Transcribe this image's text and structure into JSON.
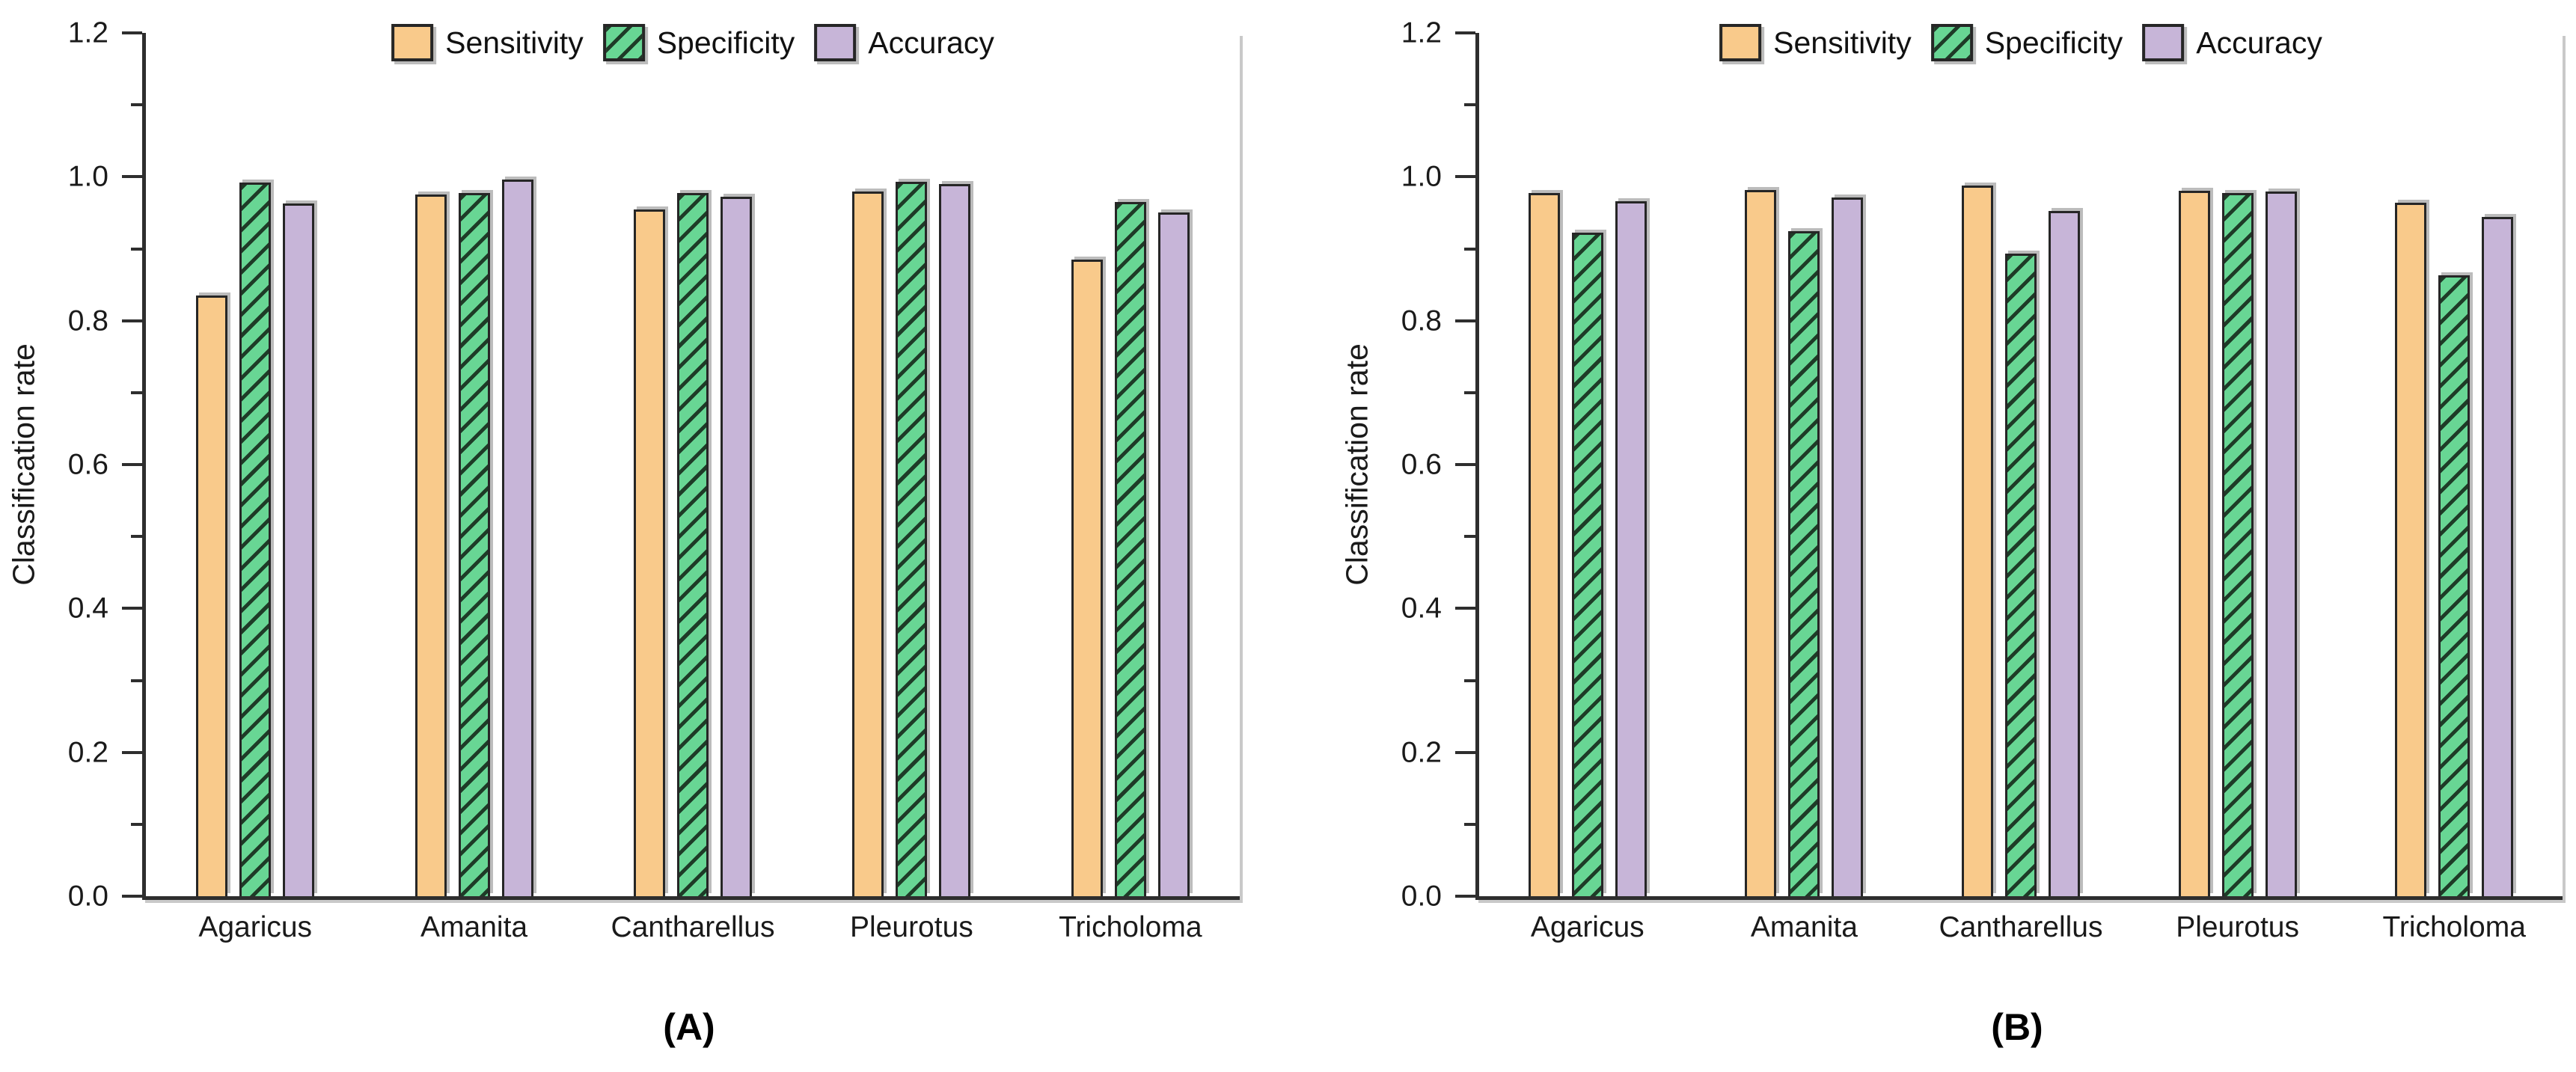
{
  "page": {
    "background": "#ffffff"
  },
  "colors": {
    "sensitivity_fill": "#F9CA8B",
    "specificity_fill": "#68D694",
    "accuracy_fill": "#C7B5D8",
    "hatch_line": "#1e3b27",
    "bar_border": "#262626",
    "axis": "#2e2e2e",
    "shadow": "#bcbcbc",
    "text": "#1a1a1a"
  },
  "legend": {
    "items": [
      {
        "label": "Sensitivity",
        "color": "#F9CA8B",
        "hatch": false
      },
      {
        "label": "Specificity",
        "color": "#68D694",
        "hatch": true
      },
      {
        "label": "Accuracy",
        "color": "#C7B5D8",
        "hatch": false
      }
    ]
  },
  "chart_data": [
    {
      "id": "A",
      "type": "bar",
      "caption": "(A)",
      "ylabel": "Classification rate",
      "ylim": [
        0,
        1.2
      ],
      "ytick_labels": [
        "0.0",
        "0.2",
        "0.4",
        "0.6",
        "0.8",
        "1.0",
        "1.2"
      ],
      "minor_ticks": [
        0.1,
        0.3,
        0.5,
        0.7,
        0.9,
        1.1
      ],
      "grid": false,
      "legend_position": "top-center",
      "categories": [
        "Agaricus",
        "Amanita",
        "Cantharellus",
        "Pleurotus",
        "Tricholoma"
      ],
      "series": [
        {
          "name": "Sensitivity",
          "values": [
            0.835,
            0.975,
            0.955,
            0.98,
            0.885
          ]
        },
        {
          "name": "Specificity",
          "values": [
            0.992,
            0.978,
            0.977,
            0.993,
            0.965
          ]
        },
        {
          "name": "Accuracy",
          "values": [
            0.963,
            0.996,
            0.972,
            0.99,
            0.95
          ]
        }
      ]
    },
    {
      "id": "B",
      "type": "bar",
      "caption": "(B)",
      "ylabel": "Classification rate",
      "ylim": [
        0,
        1.2
      ],
      "ytick_labels": [
        "0.0",
        "0.2",
        "0.4",
        "0.6",
        "0.8",
        "1.0",
        "1.2"
      ],
      "minor_ticks": [
        0.1,
        0.3,
        0.5,
        0.7,
        0.9,
        1.1
      ],
      "grid": false,
      "legend_position": "top-center",
      "categories": [
        "Agaricus",
        "Amanita",
        "Cantharellus",
        "Pleurotus",
        "Tricholoma"
      ],
      "series": [
        {
          "name": "Sensitivity",
          "values": [
            0.977,
            0.982,
            0.988,
            0.981,
            0.964
          ]
        },
        {
          "name": "Specificity",
          "values": [
            0.922,
            0.924,
            0.893,
            0.978,
            0.863
          ]
        },
        {
          "name": "Accuracy",
          "values": [
            0.966,
            0.971,
            0.953,
            0.98,
            0.944
          ]
        }
      ]
    }
  ]
}
